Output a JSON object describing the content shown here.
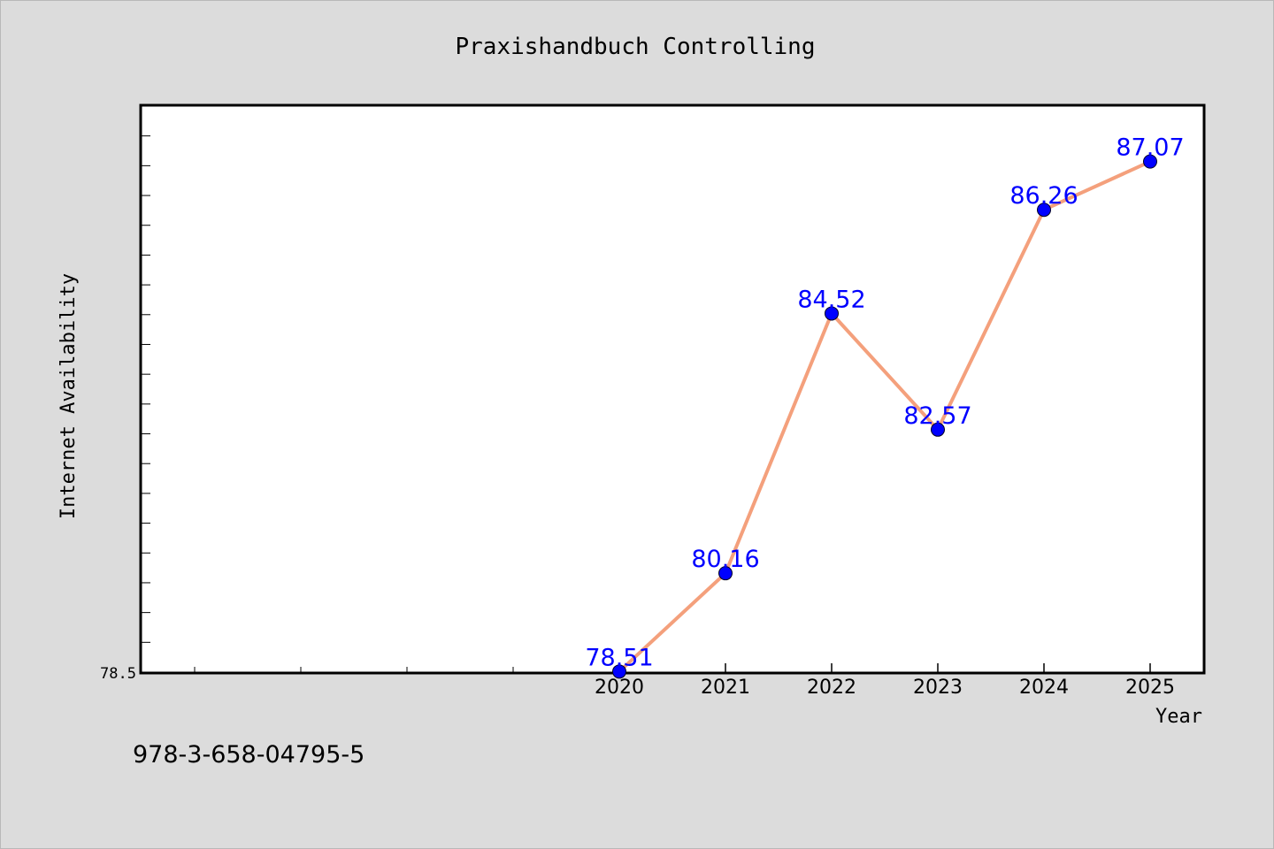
{
  "chart_data": {
    "type": "line",
    "title": "Praxishandbuch Controlling",
    "xlabel": "Year",
    "ylabel": "Internet Availability",
    "x": [
      2020,
      2021,
      2022,
      2023,
      2024,
      2025
    ],
    "series": [
      {
        "values": [
          78.51,
          80.16,
          84.52,
          82.57,
          86.26,
          87.07
        ],
        "labels": [
          "78.51",
          "80.16",
          "84.52",
          "82.57",
          "86.26",
          "87.07"
        ]
      }
    ],
    "xlim": [
      2015.5,
      2025.5
    ],
    "ylim": [
      78.5,
      88.0
    ],
    "y_tick_labels": [
      {
        "value": 78.5,
        "label": "78.5"
      }
    ],
    "grid": false,
    "line_color": "#f4a07c",
    "marker_color": "#0000ff",
    "label_color": "#0000ff"
  },
  "footer": {
    "isbn": "978-3-658-04795-5"
  }
}
